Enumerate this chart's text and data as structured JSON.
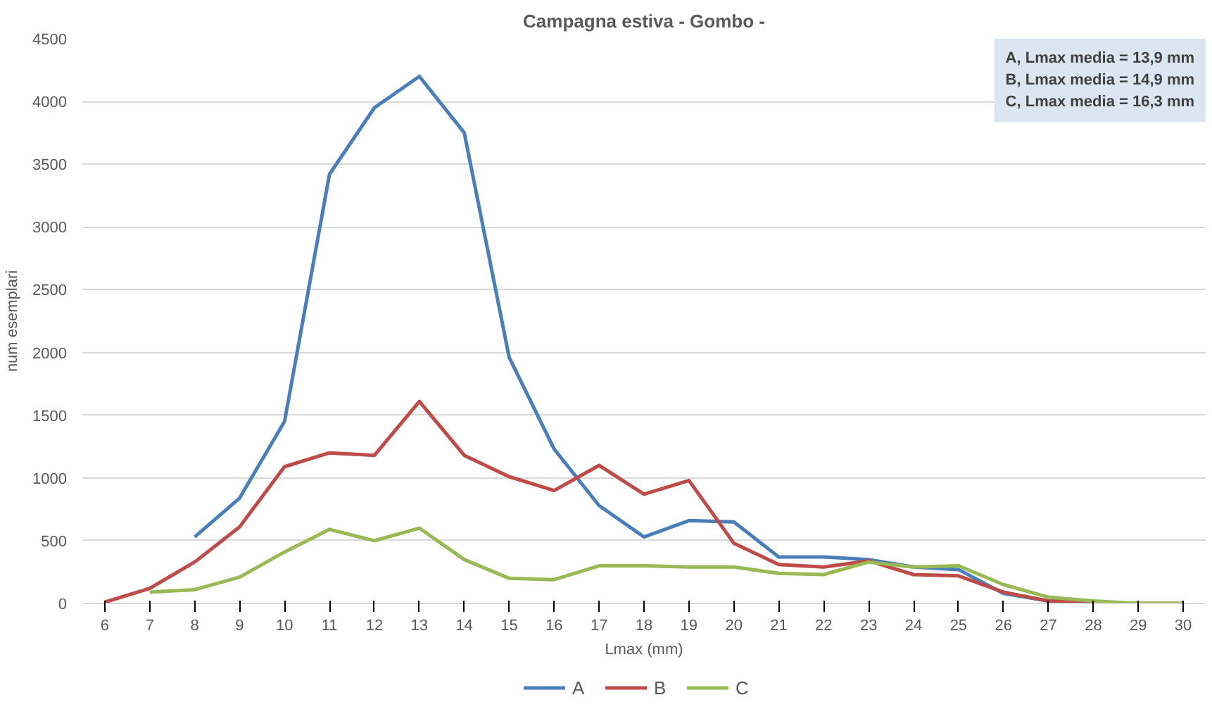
{
  "chart_data": {
    "type": "line",
    "title": "Campagna estiva - Gombo -",
    "xlabel": "Lmax (mm)",
    "ylabel": "num esemplari",
    "categories": [
      "6",
      "7",
      "8",
      "9",
      "10",
      "11",
      "12",
      "13",
      "14",
      "15",
      "16",
      "17",
      "18",
      "19",
      "20",
      "21",
      "22",
      "23",
      "24",
      "25",
      "26",
      "27",
      "28",
      "29",
      "30"
    ],
    "series": [
      {
        "name": "A",
        "color": "#4a7ebb",
        "values": [
          null,
          null,
          530,
          840,
          1450,
          3420,
          3950,
          4200,
          3750,
          1960,
          1230,
          780,
          530,
          660,
          650,
          370,
          370,
          350,
          290,
          270,
          80,
          20,
          10,
          null,
          null
        ]
      },
      {
        "name": "B",
        "color": "#be4b48",
        "values": [
          10,
          120,
          330,
          610,
          1090,
          1200,
          1180,
          1610,
          1180,
          1010,
          900,
          1100,
          870,
          980,
          480,
          310,
          290,
          340,
          230,
          220,
          90,
          20,
          10,
          0,
          0
        ]
      },
      {
        "name": "C",
        "color": "#98b954",
        "values": [
          null,
          90,
          110,
          210,
          410,
          590,
          500,
          600,
          350,
          200,
          190,
          300,
          300,
          290,
          290,
          240,
          230,
          330,
          290,
          300,
          150,
          50,
          20,
          0,
          0
        ]
      }
    ],
    "ylim": [
      0,
      4500
    ],
    "yticks": [
      0,
      500,
      1000,
      1500,
      2000,
      2500,
      3000,
      3500,
      4000,
      4500
    ],
    "grid": "y",
    "legend": "bottom",
    "marker": "none",
    "line_style": "solid",
    "annotations": [
      "A, Lmax media = 13,9 mm\nB, Lmax media = 14,9 mm\nC, Lmax media = 16,3 mm"
    ]
  }
}
